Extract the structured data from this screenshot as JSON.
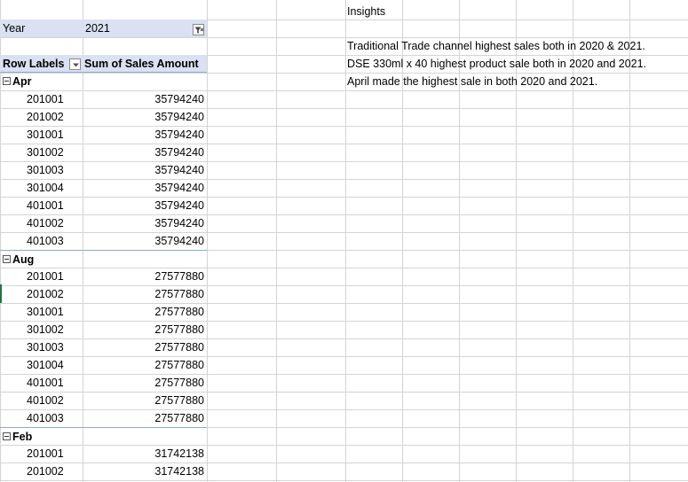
{
  "filter": {
    "label": "Year",
    "value": "2021"
  },
  "pivot": {
    "row_labels_header": "Row Labels",
    "values_header": "Sum of Sales Amount",
    "groups": [
      {
        "month": "Apr",
        "rows": [
          {
            "label": "201001",
            "value": "35794240"
          },
          {
            "label": "201002",
            "value": "35794240"
          },
          {
            "label": "301001",
            "value": "35794240"
          },
          {
            "label": "301002",
            "value": "35794240"
          },
          {
            "label": "301003",
            "value": "35794240"
          },
          {
            "label": "301004",
            "value": "35794240"
          },
          {
            "label": "401001",
            "value": "35794240"
          },
          {
            "label": "401002",
            "value": "35794240"
          },
          {
            "label": "401003",
            "value": "35794240"
          }
        ]
      },
      {
        "month": "Aug",
        "rows": [
          {
            "label": "201001",
            "value": "27577880"
          },
          {
            "label": "201002",
            "value": "27577880"
          },
          {
            "label": "301001",
            "value": "27577880"
          },
          {
            "label": "301002",
            "value": "27577880"
          },
          {
            "label": "301003",
            "value": "27577880"
          },
          {
            "label": "301004",
            "value": "27577880"
          },
          {
            "label": "401001",
            "value": "27577880"
          },
          {
            "label": "401002",
            "value": "27577880"
          },
          {
            "label": "401003",
            "value": "27577880"
          }
        ]
      },
      {
        "month": "Feb",
        "rows": [
          {
            "label": "201001",
            "value": "31742138"
          },
          {
            "label": "201002",
            "value": "31742138"
          }
        ]
      }
    ]
  },
  "insights": {
    "title": "Insights",
    "lines": [
      "Traditional Trade channel highest sales both in 2020 & 2021.",
      "DSE 330ml x 40 highest product sale both in 2020 and 2021.",
      "April made the highest sale in both 2020 and 2021."
    ]
  },
  "colors": {
    "header_fill": "#d9e1f2",
    "border": "#8ea9db",
    "gridline": "#d4d4d4"
  }
}
